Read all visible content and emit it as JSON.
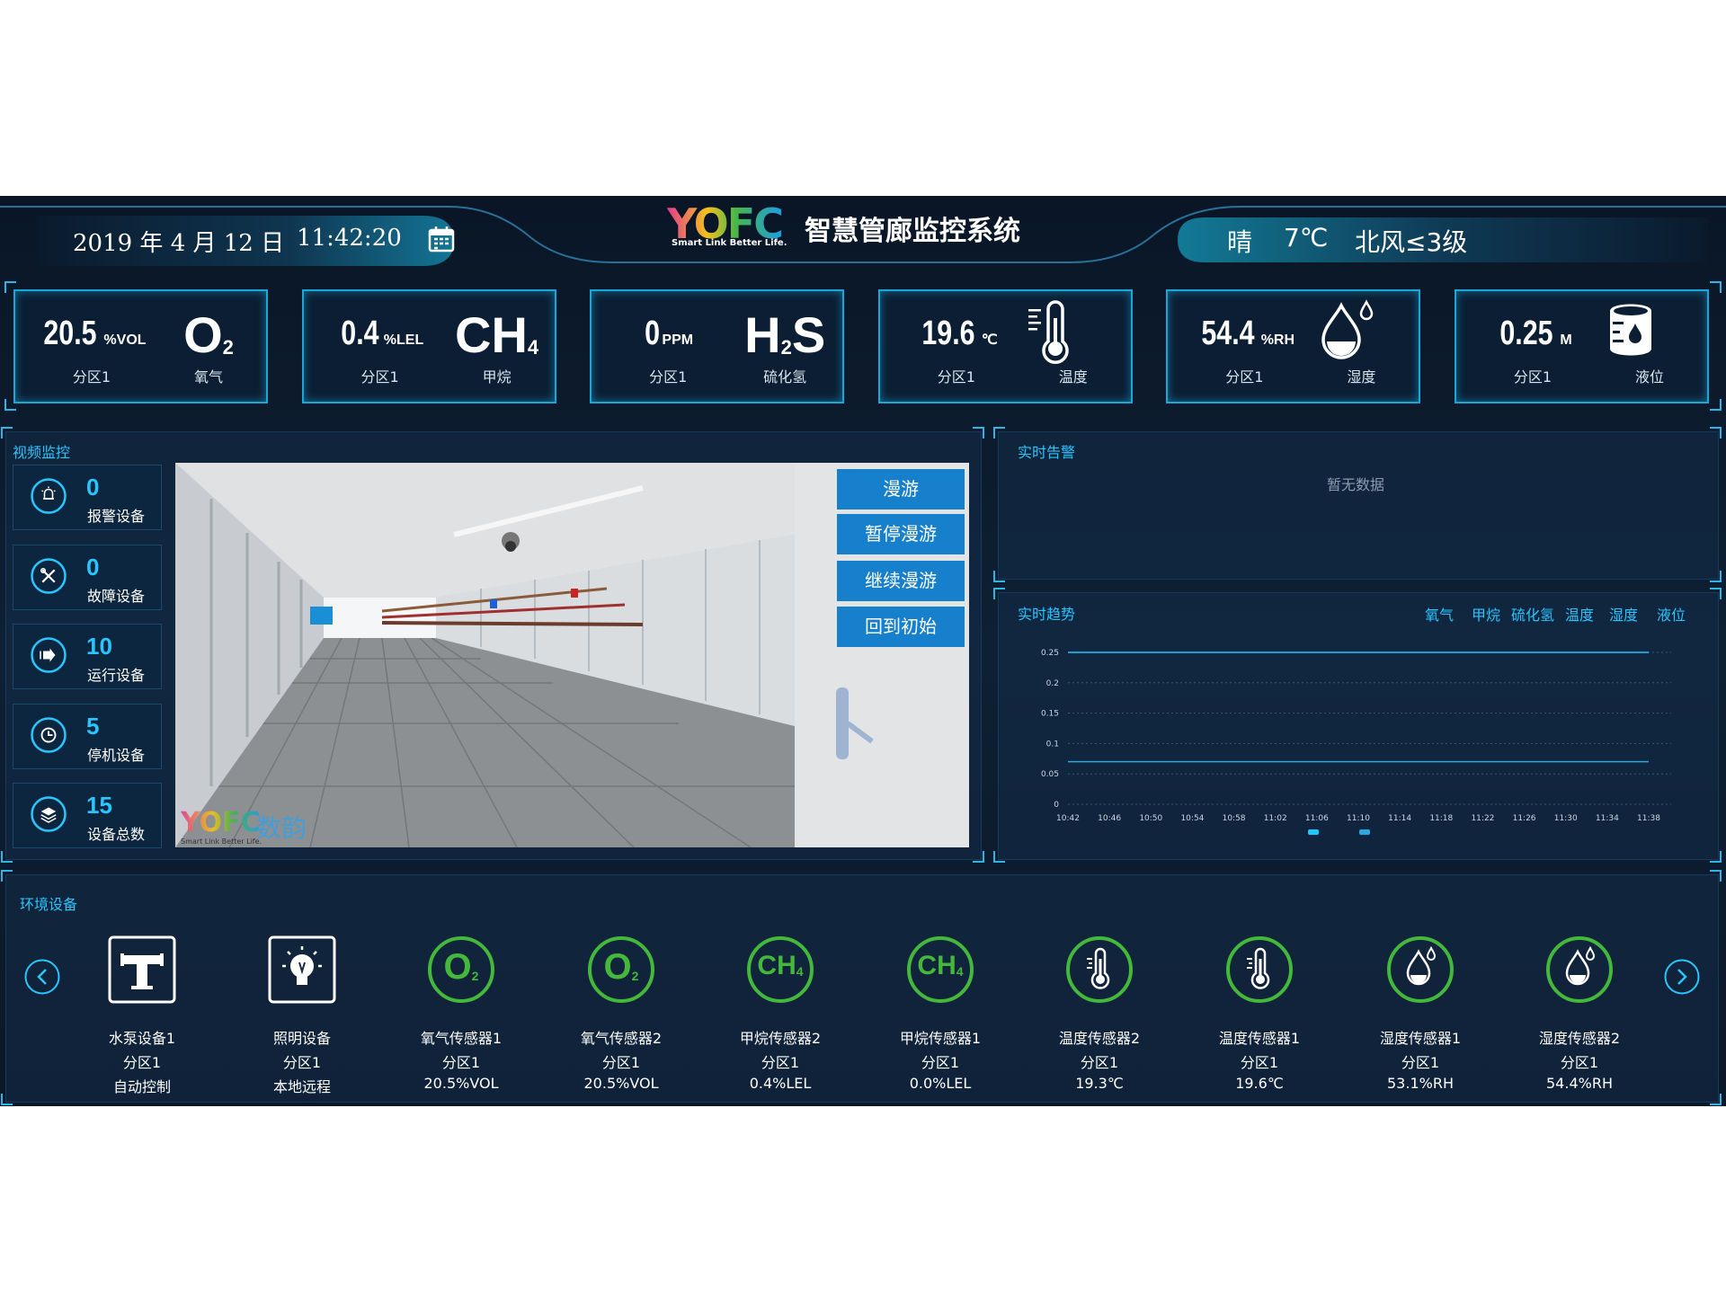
{
  "header": {
    "date": "2019 年 4 月 12 日",
    "time": "11:42:20",
    "logo": "YOFC",
    "tagline": "Smart Link Better Life.",
    "title": "智慧管廊监控系统",
    "weather": {
      "condition": "晴",
      "temperature": "7℃",
      "wind": "北风≤3级"
    }
  },
  "cards": [
    {
      "value": 20.5,
      "unit": "%VOL",
      "zone": "分区1",
      "symbol": "O",
      "sub": "2",
      "label": "氧气"
    },
    {
      "value": 0.4,
      "unit": "%LEL",
      "zone": "分区1",
      "symbol": "CH",
      "sub": "4",
      "label": "甲烷"
    },
    {
      "value": 0,
      "unit": "PPM",
      "zone": "分区1",
      "symbol": "H",
      "sub": "2",
      "after": "S",
      "label": "硫化氢"
    },
    {
      "value": 19.6,
      "unit": "℃",
      "zone": "分区1",
      "label": "温度"
    },
    {
      "value": 54.4,
      "unit": "%RH",
      "zone": "分区1",
      "label": "湿度"
    },
    {
      "value": 0.25,
      "unit": "M",
      "zone": "分区1",
      "label": "液位"
    }
  ],
  "video": {
    "title": "视频监控",
    "stats": [
      {
        "value": 0,
        "label": "报警设备"
      },
      {
        "value": 0,
        "label": "故障设备"
      },
      {
        "value": 10,
        "label": "运行设备"
      },
      {
        "value": 5,
        "label": "停机设备"
      },
      {
        "value": 15,
        "label": "设备总数"
      }
    ],
    "buttons": [
      "漫游",
      "暂停漫游",
      "继续漫游",
      "回到初始"
    ],
    "watermark": {
      "logo": "YOFC",
      "name": "数韵",
      "tagline": "Smart Link Better Life."
    }
  },
  "alerts": {
    "title": "实时告警",
    "empty": "暂无数据"
  },
  "trend": {
    "title": "实时趋势",
    "tabs": [
      "氧气",
      "甲烷",
      "硫化氢",
      "温度",
      "湿度",
      "液位"
    ]
  },
  "chart_data": {
    "type": "line",
    "categories": [
      "10:42",
      "10:46",
      "10:50",
      "10:54",
      "10:58",
      "11:02",
      "11:06",
      "11:10",
      "11:14",
      "11:18",
      "11:22",
      "11:26",
      "11:30",
      "11:34",
      "11:38"
    ],
    "series": [
      {
        "color": "#1ec8ff",
        "values": [
          0.25,
          0.25,
          0.25,
          0.25,
          0.25,
          0.25,
          0.25,
          0.25,
          0.25,
          0.25,
          0.25,
          0.25,
          0.25,
          0.25,
          0.25
        ]
      },
      {
        "color": "#2aa8e0",
        "values": [
          0.07,
          0.07,
          0.07,
          0.07,
          0.07,
          0.07,
          0.07,
          0.07,
          0.07,
          0.07,
          0.07,
          0.07,
          0.07,
          0.07,
          0.07
        ]
      }
    ],
    "ylim": [
      0,
      0.25
    ],
    "yticks": [
      0,
      0.05,
      0.1,
      0.15,
      0.2,
      0.25
    ],
    "grid": true
  },
  "environment": {
    "title": "环境设备",
    "items": [
      {
        "name": "水泵设备1",
        "zone": "分区1",
        "status": "自动控制"
      },
      {
        "name": "照明设备",
        "zone": "分区1",
        "status": "本地远程"
      },
      {
        "name": "氧气传感器1",
        "zone": "分区1",
        "status": "20.5%VOL",
        "symbol": "O",
        "sub": "2"
      },
      {
        "name": "氧气传感器2",
        "zone": "分区1",
        "status": "20.5%VOL",
        "symbol": "O",
        "sub": "2"
      },
      {
        "name": "甲烷传感器2",
        "zone": "分区1",
        "status": "0.4%LEL",
        "symbol": "CH",
        "sub": "4"
      },
      {
        "name": "甲烷传感器1",
        "zone": "分区1",
        "status": "0.0%LEL",
        "symbol": "CH",
        "sub": "4"
      },
      {
        "name": "温度传感器2",
        "zone": "分区1",
        "status": "19.3℃"
      },
      {
        "name": "温度传感器1",
        "zone": "分区1",
        "status": "19.6℃"
      },
      {
        "name": "湿度传感器1",
        "zone": "分区1",
        "status": "53.1%RH"
      },
      {
        "name": "湿度传感器2",
        "zone": "分区1",
        "status": "54.4%RH"
      }
    ]
  }
}
